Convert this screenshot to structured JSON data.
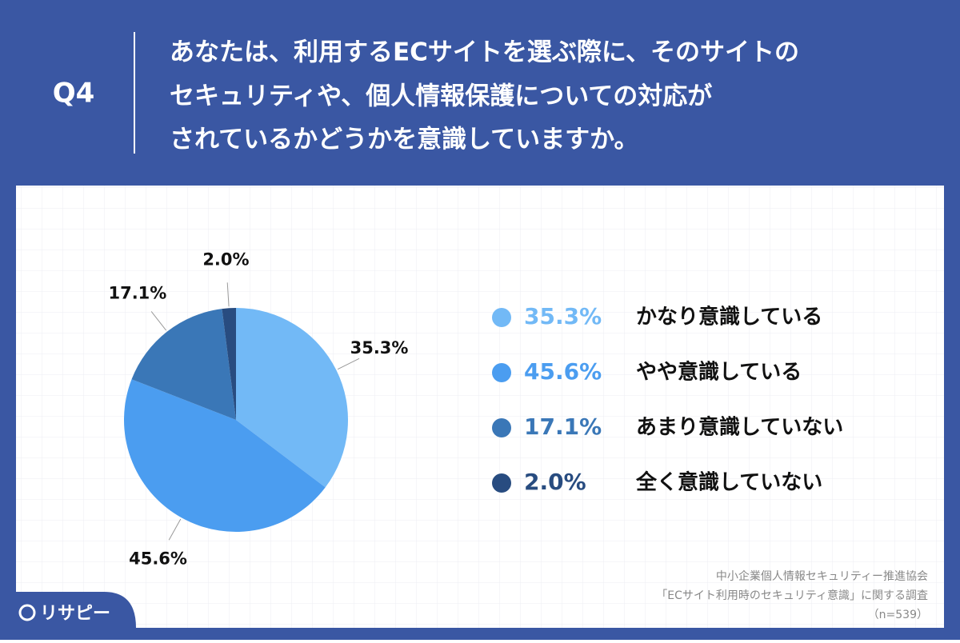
{
  "chart_data": {
    "type": "pie",
    "question_label": "Q4",
    "title": [
      "あなたは、利用するECサイトを選ぶ際に、そのサイトの",
      "セキュリティや、個人情報保護についての対応が",
      "されているかどうかを意識していますか。"
    ],
    "categories": [
      "かなり意識している",
      "やや意識している",
      "あまり意識していない",
      "全く意識していない"
    ],
    "values": [
      35.3,
      45.6,
      17.1,
      2.0
    ],
    "value_labels": [
      "35.3%",
      "45.6%",
      "17.1%",
      "2.0%"
    ],
    "colors": [
      "#72b9f6",
      "#4b9df0",
      "#3a77b7",
      "#284c80"
    ],
    "source": [
      "中小企業個人情報セキュリティー推進協会",
      "「ECサイト利用時のセキュリティ意識」に関する調査",
      "（n=539）"
    ],
    "logo": "リサピー"
  }
}
